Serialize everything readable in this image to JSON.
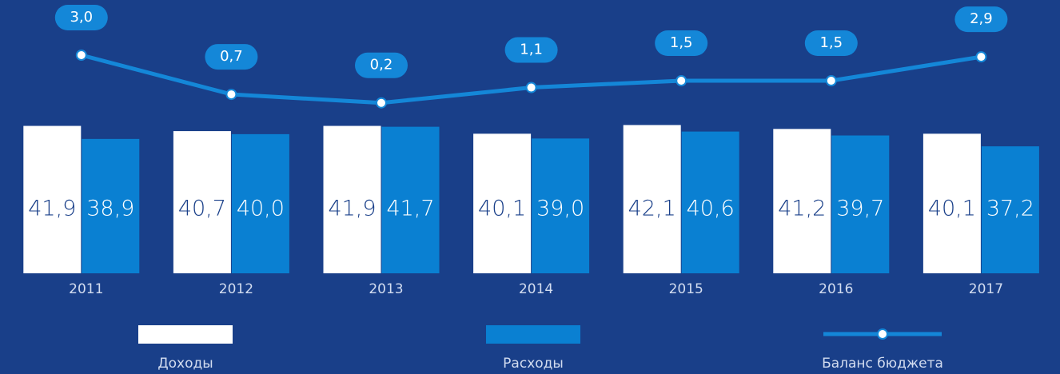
{
  "chart_data": {
    "type": "bar",
    "categories": [
      "2011",
      "2012",
      "2013",
      "2014",
      "2015",
      "2016",
      "2017"
    ],
    "series": [
      {
        "name": "Доходы",
        "color": "#ffffff",
        "values": [
          41.9,
          40.7,
          41.9,
          40.1,
          42.1,
          41.2,
          40.1
        ],
        "value_labels": [
          "41,9",
          "40,7",
          "41,9",
          "40,1",
          "42,1",
          "41,2",
          "40,1"
        ]
      },
      {
        "name": "Расходы",
        "color": "#0a80d2",
        "values": [
          38.9,
          40.0,
          41.7,
          39.0,
          40.6,
          39.7,
          37.2
        ],
        "value_labels": [
          "38,9",
          "40,0",
          "41,7",
          "39,0",
          "40,6",
          "39,7",
          "37,2"
        ]
      },
      {
        "name": "Баланс бюджета",
        "type": "line",
        "axis": "y2",
        "color": "#1487d8",
        "values": [
          3.0,
          0.7,
          0.2,
          1.1,
          1.5,
          1.5,
          2.9
        ],
        "value_labels": [
          "3,0",
          "0,7",
          "0,2",
          "1,1",
          "1,5",
          "1,5",
          "2,9"
        ]
      }
    ],
    "ylim": [
      8,
      42
    ],
    "y2lim": [
      0,
      3
    ]
  }
}
